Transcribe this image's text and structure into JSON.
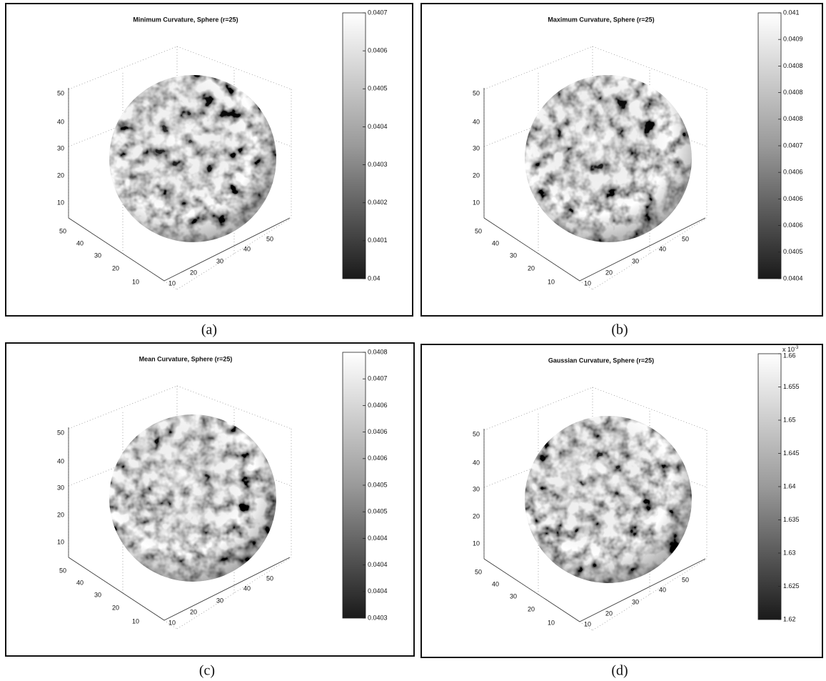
{
  "panels": [
    {
      "title": "Minimum Curvature, Sphere (r=25)",
      "caption": "(a)",
      "z_ticks": [
        "50",
        "40",
        "30",
        "20",
        "10"
      ],
      "y_ticks": [
        "50",
        "40",
        "30",
        "20",
        "10"
      ],
      "x_ticks": [
        "10",
        "20",
        "30",
        "40",
        "50"
      ],
      "colorbar_ticks": [
        "0.0407",
        "0.0406",
        "0.0405",
        "0.0404",
        "0.0403",
        "0.0402",
        "0.0401",
        "0.04"
      ]
    },
    {
      "title": "Maximum Curvature, Sphere (r=25)",
      "caption": "(b)",
      "z_ticks": [
        "50",
        "40",
        "30",
        "20",
        "10"
      ],
      "y_ticks": [
        "50",
        "40",
        "30",
        "20",
        "10"
      ],
      "x_ticks": [
        "10",
        "20",
        "30",
        "40",
        "50"
      ],
      "colorbar_ticks": [
        "0.041",
        "0.0409",
        "0.0408",
        "0.0408",
        "0.0408",
        "0.0407",
        "0.0406",
        "0.0406",
        "0.0406",
        "0.0405",
        "0.0404"
      ]
    },
    {
      "title": "Mean Curvature, Sphere (r=25)",
      "caption": "(c)",
      "z_ticks": [
        "50",
        "40",
        "30",
        "20",
        "10"
      ],
      "y_ticks": [
        "50",
        "40",
        "30",
        "20",
        "10"
      ],
      "x_ticks": [
        "10",
        "20",
        "30",
        "40",
        "50"
      ],
      "colorbar_ticks": [
        "0.0408",
        "0.0407",
        "0.0406",
        "0.0406",
        "0.0406",
        "0.0405",
        "0.0405",
        "0.0404",
        "0.0404",
        "0.0404",
        "0.0403"
      ]
    },
    {
      "title": "Gaussian Curvature, Sphere (r=25)",
      "caption": "(d)",
      "z_ticks": [
        "50",
        "40",
        "30",
        "20",
        "10"
      ],
      "y_ticks": [
        "50",
        "40",
        "30",
        "20",
        "10"
      ],
      "x_ticks": [
        "10",
        "20",
        "30",
        "40",
        "50"
      ],
      "colorbar_multiplier": {
        "base": "x 10",
        "exponent": "-3"
      },
      "colorbar_ticks": [
        "1.66",
        "1.655",
        "1.65",
        "1.645",
        "1.64",
        "1.635",
        "1.63",
        "1.625",
        "1.62"
      ]
    }
  ]
}
